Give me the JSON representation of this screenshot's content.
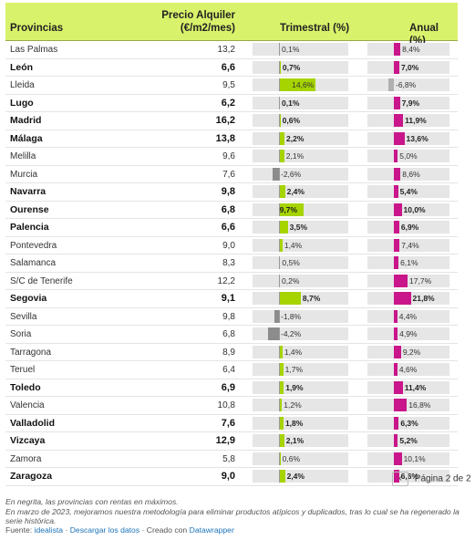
{
  "header": {
    "provincias": "Provincias",
    "precio_line1": "Precio Alquiler",
    "precio_line2": "(€/m2/mes)",
    "trimestral": "Trimestral (%)",
    "anual": "Anual (%)"
  },
  "colors": {
    "header_bg": "#d9f26b",
    "trimestral_positive": "#a6d400",
    "trimestral_negative": "#8c8c8c",
    "anual_positive": "#c9168a",
    "anual_negative": "#b0b0b0"
  },
  "chart_data": {
    "type": "table",
    "columns": [
      "Provincias",
      "Precio Alquiler (€/m2/mes)",
      "Trimestral (%)",
      "Anual (%)"
    ],
    "rows": [
      {
        "provincia": "Las Palmas",
        "precio": "13,2",
        "trimestral": 0.1,
        "trimestral_label": "0,1%",
        "anual": 8.4,
        "anual_label": "8,4%",
        "bold": false
      },
      {
        "provincia": "León",
        "precio": "6,6",
        "trimestral": 0.7,
        "trimestral_label": "0,7%",
        "anual": 7.0,
        "anual_label": "7,0%",
        "bold": true
      },
      {
        "provincia": "Lleida",
        "precio": "9,5",
        "trimestral": 14.6,
        "trimestral_label": "14,6%",
        "anual": -6.8,
        "anual_label": "-6,8%",
        "bold": false
      },
      {
        "provincia": "Lugo",
        "precio": "6,2",
        "trimestral": 0.1,
        "trimestral_label": "0,1%",
        "anual": 7.9,
        "anual_label": "7,9%",
        "bold": true
      },
      {
        "provincia": "Madrid",
        "precio": "16,2",
        "trimestral": 0.6,
        "trimestral_label": "0,6%",
        "anual": 11.9,
        "anual_label": "11,9%",
        "bold": true
      },
      {
        "provincia": "Málaga",
        "precio": "13,8",
        "trimestral": 2.2,
        "trimestral_label": "2,2%",
        "anual": 13.6,
        "anual_label": "13,6%",
        "bold": true
      },
      {
        "provincia": "Melilla",
        "precio": "9,6",
        "trimestral": 2.1,
        "trimestral_label": "2,1%",
        "anual": 5.0,
        "anual_label": "5,0%",
        "bold": false
      },
      {
        "provincia": "Murcia",
        "precio": "7,6",
        "trimestral": -2.6,
        "trimestral_label": "-2,6%",
        "anual": 8.6,
        "anual_label": "8,6%",
        "bold": false
      },
      {
        "provincia": "Navarra",
        "precio": "9,8",
        "trimestral": 2.4,
        "trimestral_label": "2,4%",
        "anual": 5.4,
        "anual_label": "5,4%",
        "bold": true
      },
      {
        "provincia": "Ourense",
        "precio": "6,8",
        "trimestral": 9.7,
        "trimestral_label": "9,7%",
        "anual": 10.0,
        "anual_label": "10,0%",
        "bold": true
      },
      {
        "provincia": "Palencia",
        "precio": "6,6",
        "trimestral": 3.5,
        "trimestral_label": "3,5%",
        "anual": 6.9,
        "anual_label": "6,9%",
        "bold": true
      },
      {
        "provincia": "Pontevedra",
        "precio": "9,0",
        "trimestral": 1.4,
        "trimestral_label": "1,4%",
        "anual": 7.4,
        "anual_label": "7,4%",
        "bold": false
      },
      {
        "provincia": "Salamanca",
        "precio": "8,3",
        "trimestral": 0.5,
        "trimestral_label": "0,5%",
        "anual": 6.1,
        "anual_label": "6,1%",
        "bold": false
      },
      {
        "provincia": "S/C de Tenerife",
        "precio": "12,2",
        "trimestral": 0.2,
        "trimestral_label": "0,2%",
        "anual": 17.7,
        "anual_label": "17,7%",
        "bold": false
      },
      {
        "provincia": "Segovia",
        "precio": "9,1",
        "trimestral": 8.7,
        "trimestral_label": "8,7%",
        "anual": 21.8,
        "anual_label": "21,8%",
        "bold": true
      },
      {
        "provincia": "Sevilla",
        "precio": "9,8",
        "trimestral": -1.8,
        "trimestral_label": "-1,8%",
        "anual": 4.4,
        "anual_label": "4,4%",
        "bold": false
      },
      {
        "provincia": "Soria",
        "precio": "6,8",
        "trimestral": -4.2,
        "trimestral_label": "-4,2%",
        "anual": 4.9,
        "anual_label": "4,9%",
        "bold": false
      },
      {
        "provincia": "Tarragona",
        "precio": "8,9",
        "trimestral": 1.4,
        "trimestral_label": "1,4%",
        "anual": 9.2,
        "anual_label": "9,2%",
        "bold": false
      },
      {
        "provincia": "Teruel",
        "precio": "6,4",
        "trimestral": 1.7,
        "trimestral_label": "1,7%",
        "anual": 4.6,
        "anual_label": "4,6%",
        "bold": false
      },
      {
        "provincia": "Toledo",
        "precio": "6,9",
        "trimestral": 1.9,
        "trimestral_label": "1,9%",
        "anual": 11.4,
        "anual_label": "11,4%",
        "bold": true
      },
      {
        "provincia": "Valencia",
        "precio": "10,8",
        "trimestral": 1.2,
        "trimestral_label": "1,2%",
        "anual": 16.8,
        "anual_label": "16,8%",
        "bold": false
      },
      {
        "provincia": "Valladolid",
        "precio": "7,6",
        "trimestral": 1.8,
        "trimestral_label": "1,8%",
        "anual": 6.3,
        "anual_label": "6,3%",
        "bold": true
      },
      {
        "provincia": "Vizcaya",
        "precio": "12,9",
        "trimestral": 2.1,
        "trimestral_label": "2,1%",
        "anual": 5.2,
        "anual_label": "5,2%",
        "bold": true
      },
      {
        "provincia": "Zamora",
        "precio": "5,8",
        "trimestral": 0.6,
        "trimestral_label": "0,6%",
        "anual": 10.1,
        "anual_label": "10,1%",
        "bold": false
      },
      {
        "provincia": "Zaragoza",
        "precio": "9,0",
        "trimestral": 2.4,
        "trimestral_label": "2,4%",
        "anual": 6.6,
        "anual_label": "6,6%",
        "bold": true
      }
    ]
  },
  "pagination": {
    "prev_icon": "chevron-left-icon",
    "prev_glyph": "‹",
    "label": "Página 2 de 2"
  },
  "notes": {
    "line1": "En negrita, las provincias con rentas en máximos.",
    "line2": "En marzo de 2023, mejoramos nuestra metodología para eliminar productos atípicos y duplicados, tras lo cual se ha regenerado la serie histórica."
  },
  "source": {
    "prefix": "Fuente: ",
    "source_link": "idealista",
    "sep1": " · ",
    "download_link": "Descargar los datos",
    "sep2": " · Creado con ",
    "datawrapper_link": "Datawrapper"
  }
}
